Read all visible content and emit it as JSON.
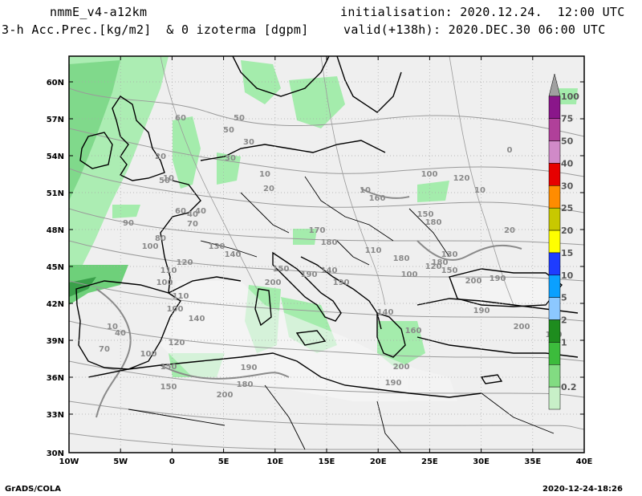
{
  "header": {
    "model": "nmmE_v4-a12km",
    "fields": "3-h Acc.Prec.[kg/m2]  & 0 izoterma [dgpm]",
    "init": "initialisation: 2020.12.24.  12:00 UTC",
    "valid": "valid(+138h): 2020.DEC.30 06:00 UTC"
  },
  "footer": {
    "left": "GrADS/COLA",
    "right": "2020-12-24-18:26"
  },
  "axes": {
    "lat_labels": [
      "60N",
      "57N",
      "54N",
      "51N",
      "48N",
      "45N",
      "42N",
      "39N",
      "36N",
      "33N",
      "30N"
    ],
    "lon_labels": [
      "10W",
      "5W",
      "0",
      "5E",
      "10E",
      "15E",
      "20E",
      "25E",
      "30E",
      "35E",
      "40E"
    ]
  },
  "colorbar": {
    "labels": [
      "100",
      "75",
      "50",
      "40",
      "30",
      "25",
      "20",
      "15",
      "10",
      "5",
      "2",
      "1",
      "0.2"
    ],
    "colors": [
      "#a0a0a0",
      "#8a168a",
      "#b0409a",
      "#d08ac8",
      "#e60000",
      "#ff8c00",
      "#c8c800",
      "#ffff00",
      "#1e3cff",
      "#0aa0ff",
      "#8cc8ff",
      "#1e8c1e",
      "#3cbc3c",
      "#82dc82",
      "#c8f0c8"
    ]
  },
  "contour_labels": [
    "60",
    "50",
    "50",
    "30",
    "10",
    "20",
    "30",
    "20",
    "10",
    "50",
    "60",
    "40",
    "70",
    "80",
    "90",
    "100",
    "120",
    "110",
    "100",
    "130",
    "140",
    "150",
    "110",
    "100",
    "190",
    "170",
    "180",
    "200",
    "190",
    "100",
    "120",
    "130",
    "140",
    "10",
    "70",
    "40",
    "0",
    "10",
    "20",
    "140",
    "120",
    "100",
    "150",
    "200",
    "190",
    "150",
    "180",
    "190",
    "200",
    "160",
    "140",
    "180",
    "200",
    "110",
    "10",
    "40",
    "150",
    "190",
    "160",
    "180",
    "150",
    "190",
    "200",
    "190",
    "100",
    "120",
    "180"
  ],
  "colors": {
    "land": "#efefef",
    "precip_light": "#a4ecac",
    "precip_mid": "#6ed07a",
    "precip_heavy": "#3aa04a",
    "contour": "#9a9a9a"
  }
}
